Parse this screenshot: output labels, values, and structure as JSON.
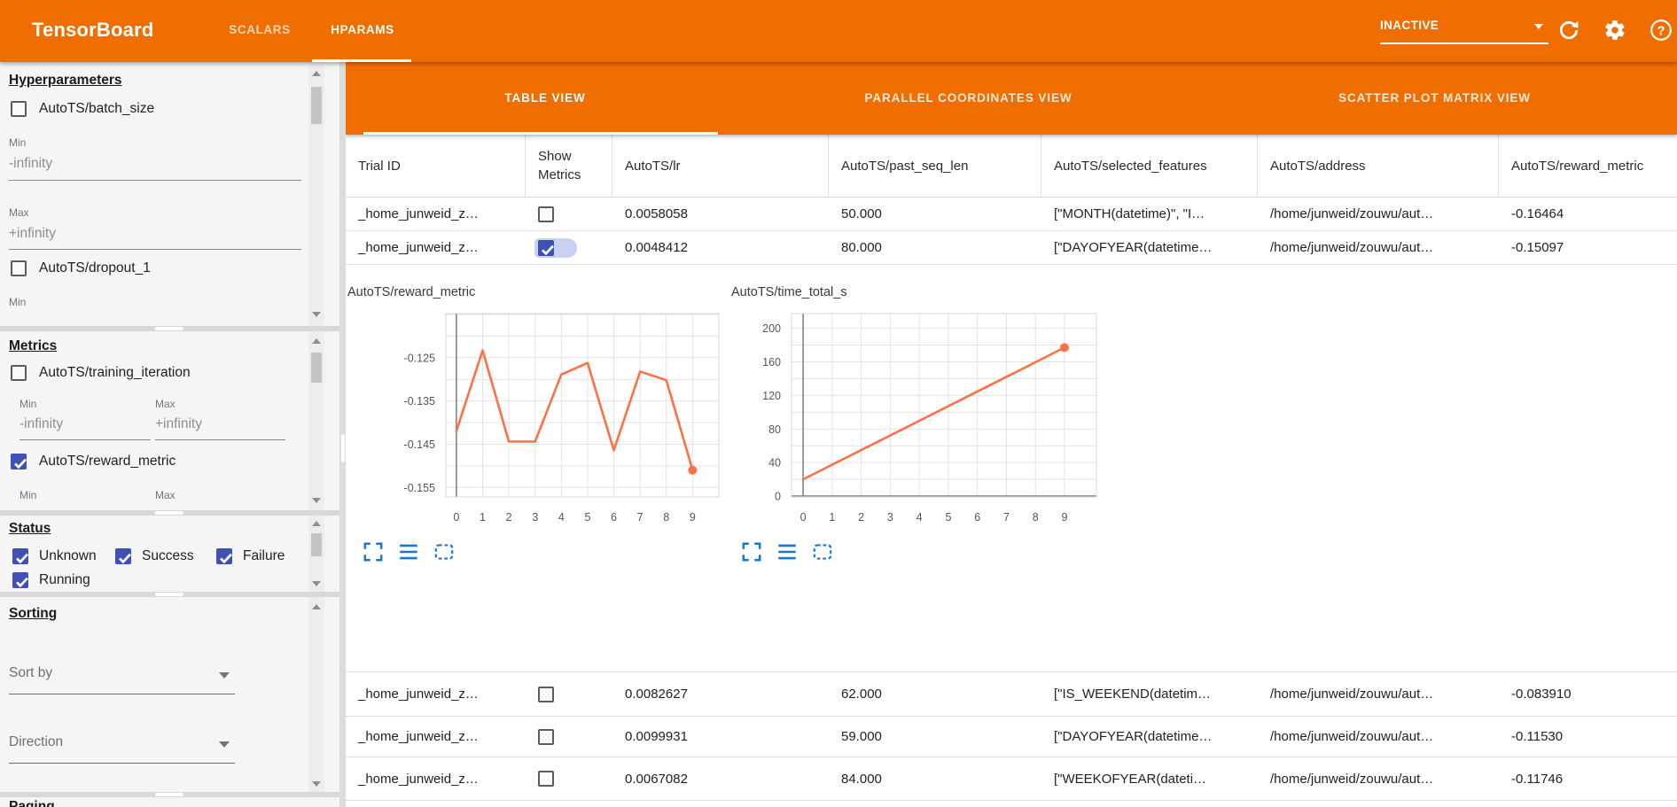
{
  "app_bar": {
    "title": "TensorBoard",
    "tabs": [
      {
        "label": "SCALARS"
      },
      {
        "label": "HPARAMS"
      }
    ],
    "active_tab": "HPARAMS",
    "run_status": "INACTIVE",
    "icons": [
      "chevron-down-icon",
      "refresh-icon",
      "gear-icon",
      "help-icon"
    ]
  },
  "sidebar": {
    "hyperparameters": {
      "title": "Hyperparameters",
      "items": [
        {
          "label": "AutoTS/batch_size",
          "checked": false
        },
        {
          "label": "AutoTS/dropout_1",
          "checked": false
        }
      ],
      "min_label": "Min",
      "min_value": "-infinity",
      "max_label": "Max",
      "max_value": "+infinity"
    },
    "metrics": {
      "title": "Metrics",
      "items": [
        {
          "label": "AutoTS/training_iteration",
          "checked": false
        },
        {
          "label": "AutoTS/reward_metric",
          "checked": true
        }
      ],
      "min_label": "Min",
      "min_value": "-infinity",
      "max_label": "Max",
      "max_value": "+infinity"
    },
    "status": {
      "title": "Status",
      "options": [
        {
          "label": "Unknown",
          "checked": true
        },
        {
          "label": "Success",
          "checked": true
        },
        {
          "label": "Failure",
          "checked": true
        },
        {
          "label": "Running",
          "checked": true
        }
      ]
    },
    "sorting": {
      "title": "Sorting",
      "sort_by_placeholder": "Sort by",
      "direction_placeholder": "Direction"
    },
    "paging": {
      "title": "Paging"
    }
  },
  "view_tabs": [
    {
      "label": "TABLE VIEW",
      "active": true
    },
    {
      "label": "PARALLEL COORDINATES VIEW",
      "active": false
    },
    {
      "label": "SCATTER PLOT MATRIX VIEW",
      "active": false
    }
  ],
  "table": {
    "columns": [
      "Trial ID",
      "Show Metrics",
      "AutoTS/lr",
      "AutoTS/past_seq_len",
      "AutoTS/selected_features",
      "AutoTS/address",
      "AutoTS/reward_metric"
    ],
    "rows": [
      {
        "trial_id": "_home_junweid_z…",
        "show_metrics": false,
        "lr": "0.0058058",
        "past_seq_len": "50.000",
        "selected_features": "[\"MONTH(datetime)\", \"I…",
        "address": "/home/junweid/zouwu/aut…",
        "reward_metric": "-0.16464"
      },
      {
        "trial_id": "_home_junweid_z…",
        "show_metrics": true,
        "lr": "0.0048412",
        "past_seq_len": "80.000",
        "selected_features": "[\"DAYOFYEAR(datetime…",
        "address": "/home/junweid/zouwu/aut…",
        "reward_metric": "-0.15097"
      },
      {
        "trial_id": "_home_junweid_z…",
        "show_metrics": false,
        "lr": "0.0082627",
        "past_seq_len": "62.000",
        "selected_features": "[\"IS_WEEKEND(datetim…",
        "address": "/home/junweid/zouwu/aut…",
        "reward_metric": "-0.083910"
      },
      {
        "trial_id": "_home_junweid_z…",
        "show_metrics": false,
        "lr": "0.0099931",
        "past_seq_len": "59.000",
        "selected_features": "[\"DAYOFYEAR(datetime…",
        "address": "/home/junweid/zouwu/aut…",
        "reward_metric": "-0.11530"
      },
      {
        "trial_id": "_home_junweid_z…",
        "show_metrics": false,
        "lr": "0.0067082",
        "past_seq_len": "84.000",
        "selected_features": "[\"WEEKOFYEAR(dateti…",
        "address": "/home/junweid/zouwu/aut…",
        "reward_metric": "-0.11746"
      }
    ]
  },
  "charts_toolbar_icons": [
    "expand-icon",
    "list-icon",
    "dashed-box-icon"
  ],
  "chart_data": [
    {
      "type": "line",
      "title": "AutoTS/reward_metric",
      "x": [
        0,
        1,
        2,
        3,
        4,
        5,
        6,
        7,
        8,
        9
      ],
      "values": [
        -0.142,
        -0.1233,
        -0.1444,
        -0.1444,
        -0.1289,
        -0.1262,
        -0.1464,
        -0.1282,
        -0.1302,
        -0.151
      ],
      "x_ticks": [
        0,
        1,
        2,
        3,
        4,
        5,
        6,
        7,
        8,
        9
      ],
      "y_ticks": [
        -0.125,
        -0.135,
        -0.145,
        -0.155
      ],
      "y_minor_step": 0.005,
      "y_tick_decimals": 3,
      "xlim": [
        -0.4,
        10.0
      ],
      "ylim": [
        -0.1572,
        -0.1148
      ],
      "grid": true,
      "dark_zero_x": true,
      "dark_zero_y": false,
      "line_color": "#ff7043",
      "end_marker": true
    },
    {
      "type": "line",
      "title": "AutoTS/time_total_s",
      "x": [
        0,
        9
      ],
      "values": [
        20,
        177
      ],
      "x_ticks": [
        0,
        1,
        2,
        3,
        4,
        5,
        6,
        7,
        8,
        9
      ],
      "y_ticks": [
        0,
        40,
        80,
        120,
        160,
        200
      ],
      "y_minor_step": 20,
      "y_tick_decimals": 0,
      "xlim": [
        -0.4,
        10.1
      ],
      "ylim": [
        -1,
        217.5
      ],
      "grid": true,
      "dark_zero_x": true,
      "dark_zero_y": true,
      "line_color": "#ff7043",
      "end_marker": true
    }
  ]
}
